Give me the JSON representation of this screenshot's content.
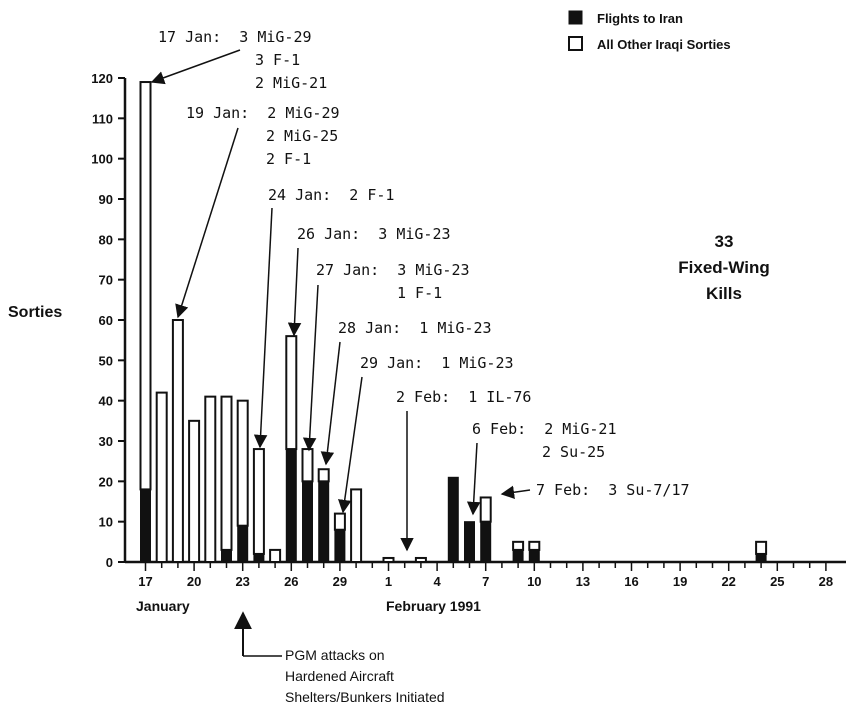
{
  "chart_data": {
    "type": "bar",
    "ylabel": "Sorties",
    "ylim": [
      0,
      120
    ],
    "yticks": [
      0,
      10,
      20,
      30,
      40,
      50,
      60,
      70,
      80,
      90,
      100,
      110,
      120
    ],
    "xtick_labels": [
      "17",
      "20",
      "23",
      "26",
      "29",
      "1",
      "4",
      "7",
      "10",
      "13",
      "16",
      "19",
      "22",
      "25",
      "28"
    ],
    "month_labels": [
      "January",
      "February 1991"
    ],
    "legend": [
      {
        "name": "Flights to Iran",
        "style": "solid",
        "color": "#111111"
      },
      {
        "name": "All Other Iraqi Sorties",
        "style": "open",
        "color": "#ffffff"
      }
    ],
    "series": [
      {
        "name": "Flights to Iran",
        "values": [
          18,
          0,
          0,
          0,
          0,
          3,
          9,
          2,
          0,
          28,
          20,
          20,
          8,
          0,
          0,
          0,
          0,
          0,
          0,
          21,
          10,
          10,
          0,
          3,
          3,
          0,
          0,
          0,
          0,
          0,
          0,
          0,
          0,
          0,
          0,
          0,
          0,
          0,
          2,
          0,
          0,
          0,
          0
        ]
      },
      {
        "name": "All Other Iraqi Sorties",
        "values": [
          101,
          42,
          60,
          35,
          41,
          38,
          31,
          26,
          3,
          28,
          8,
          3,
          4,
          18,
          0,
          1,
          0,
          1,
          0,
          0,
          0,
          6,
          0,
          2,
          2,
          0,
          0,
          0,
          0,
          0,
          0,
          0,
          0,
          0,
          0,
          0,
          0,
          0,
          3,
          0,
          0,
          0,
          0
        ]
      }
    ],
    "day_labels": [
      "17 Jan",
      "18 Jan",
      "19 Jan",
      "20 Jan",
      "21 Jan",
      "22 Jan",
      "23 Jan",
      "24 Jan",
      "25 Jan",
      "26 Jan",
      "27 Jan",
      "28 Jan",
      "29 Jan",
      "30 Jan",
      "31 Jan",
      "1 Feb",
      "2 Feb",
      "3 Feb",
      "4 Feb",
      "5 Feb",
      "6 Feb",
      "7 Feb",
      "8 Feb",
      "9 Feb",
      "10 Feb",
      "11 Feb",
      "12 Feb",
      "13 Feb",
      "14 Feb",
      "15 Feb",
      "16 Feb",
      "17 Feb",
      "18 Feb",
      "19 Feb",
      "20 Feb",
      "21 Feb",
      "22 Feb",
      "23 Feb",
      "24 Feb",
      "25 Feb",
      "26 Feb",
      "27 Feb",
      "28 Feb"
    ],
    "annotations": [
      {
        "lines": [
          "17 Jan:  3 MiG-29",
          "3 F-1",
          "2 MiG-21"
        ]
      },
      {
        "lines": [
          "19 Jan:  2 MiG-29",
          "2 MiG-25",
          "2 F-1"
        ]
      },
      {
        "lines": [
          "24 Jan:  2 F-1"
        ]
      },
      {
        "lines": [
          "26 Jan:  3 MiG-23"
        ]
      },
      {
        "lines": [
          "27 Jan:  3 MiG-23",
          "1 F-1"
        ]
      },
      {
        "lines": [
          "28 Jan:  1 MiG-23"
        ]
      },
      {
        "lines": [
          "29 Jan:  1 MiG-23"
        ]
      },
      {
        "lines": [
          "2 Feb:  1 IL-76"
        ]
      },
      {
        "lines": [
          "6 Feb:  2 MiG-21",
          "2 Su-25"
        ]
      },
      {
        "lines": [
          "7 Feb:  3 Su-7/17"
        ]
      }
    ],
    "kills_total": "33",
    "kills_label": [
      "Fixed-Wing",
      "Kills"
    ],
    "pgm_note": [
      "PGM attacks on",
      "Hardened Aircraft",
      "Shelters/Bunkers Initiated"
    ]
  }
}
